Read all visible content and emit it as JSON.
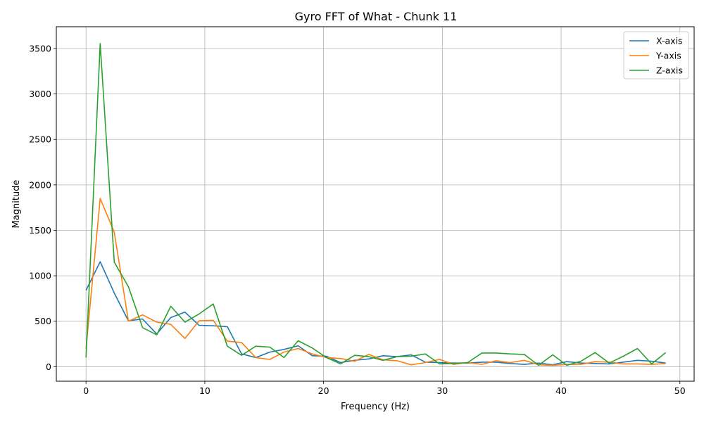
{
  "chart_data": {
    "type": "line",
    "title": "Gyro FFT of What - Chunk 11",
    "xlabel": "Frequency (Hz)",
    "ylabel": "Magnitude",
    "xlim": [
      -2.5,
      51.2
    ],
    "ylim": [
      -160,
      3740
    ],
    "xticks": [
      0,
      10,
      20,
      30,
      40,
      50
    ],
    "yticks": [
      0,
      500,
      1000,
      1500,
      2000,
      2500,
      3000,
      3500
    ],
    "grid": true,
    "legend_position": "top-right",
    "x": [
      0,
      1.19,
      2.38,
      3.57,
      4.76,
      5.95,
      7.14,
      8.33,
      9.52,
      10.71,
      11.9,
      13.1,
      14.29,
      15.48,
      16.67,
      17.86,
      19.05,
      20.24,
      21.43,
      22.62,
      23.81,
      25.0,
      26.19,
      27.38,
      28.57,
      29.76,
      30.95,
      32.14,
      33.33,
      34.52,
      35.71,
      36.9,
      38.1,
      39.29,
      40.48,
      41.67,
      42.86,
      44.05,
      45.24,
      46.43,
      47.62,
      48.81
    ],
    "series": [
      {
        "name": "X-axis",
        "color": "#1f77b4",
        "values": [
          840,
          1155,
          810,
          505,
          525,
          360,
          540,
          600,
          455,
          450,
          440,
          140,
          100,
          160,
          190,
          230,
          120,
          115,
          45,
          70,
          85,
          120,
          110,
          130,
          50,
          45,
          40,
          40,
          50,
          50,
          35,
          25,
          40,
          20,
          55,
          40,
          35,
          30,
          50,
          70,
          60,
          40
        ]
      },
      {
        "name": "Y-axis",
        "color": "#ff7f0e",
        "values": [
          200,
          1850,
          1480,
          500,
          570,
          490,
          465,
          310,
          505,
          510,
          280,
          265,
          100,
          80,
          160,
          200,
          140,
          100,
          90,
          60,
          135,
          75,
          65,
          20,
          45,
          80,
          25,
          45,
          25,
          65,
          45,
          70,
          20,
          15,
          25,
          25,
          55,
          50,
          30,
          30,
          25,
          35
        ]
      },
      {
        "name": "Z-axis",
        "color": "#2ca02c",
        "values": [
          100,
          3555,
          1150,
          880,
          430,
          350,
          665,
          490,
          580,
          690,
          225,
          125,
          225,
          215,
          100,
          285,
          205,
          100,
          30,
          125,
          110,
          70,
          110,
          115,
          140,
          30,
          35,
          45,
          150,
          150,
          140,
          135,
          15,
          130,
          15,
          60,
          155,
          40,
          115,
          200,
          30,
          155
        ]
      }
    ]
  }
}
